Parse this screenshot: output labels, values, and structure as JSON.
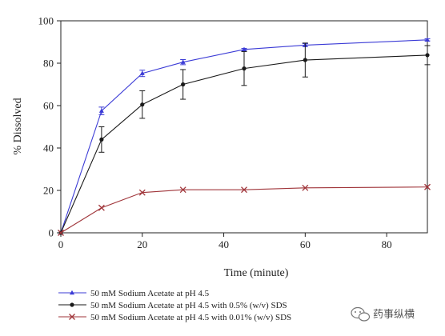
{
  "chart_data": {
    "type": "line",
    "xlabel": "Time (minute)",
    "ylabel": "% Dissolved",
    "xlim": [
      0,
      90
    ],
    "ylim": [
      0,
      100
    ],
    "xticks": [
      0,
      20,
      40,
      60,
      80
    ],
    "yticks": [
      0,
      20,
      40,
      60,
      80,
      100
    ],
    "grid": false,
    "legend_position": "bottom",
    "series": [
      {
        "name": "50 mM Sodium Acetate at pH 4.5",
        "color": "#3b3bd6",
        "marker": "triangle",
        "x": [
          0,
          10,
          20,
          30,
          45,
          60,
          90
        ],
        "y": [
          0,
          57.5,
          75.2,
          80.5,
          86.5,
          88.5,
          91.0
        ],
        "err": [
          0,
          1.8,
          1.5,
          1.2,
          0.5,
          0.7,
          0.5
        ]
      },
      {
        "name": "50 mM Sodium Acetate at pH 4.5 with 0.5% (w/v) SDS",
        "color": "#1a1a1a",
        "marker": "circle",
        "x": [
          0,
          10,
          20,
          30,
          45,
          60,
          90
        ],
        "y": [
          0,
          44.0,
          60.5,
          70.0,
          77.5,
          81.5,
          83.8
        ],
        "err": [
          0,
          6.0,
          6.5,
          7.0,
          8.0,
          8.0,
          4.5
        ]
      },
      {
        "name": "50 mM Sodium Acetate at pH 4.5 with 0.01% (w/v) SDS",
        "color": "#a0353a",
        "marker": "x",
        "x": [
          0,
          10,
          20,
          30,
          45,
          60,
          90
        ],
        "y": [
          0,
          11.8,
          19.0,
          20.3,
          20.3,
          21.2,
          21.6
        ],
        "err": [
          0,
          0,
          0,
          0,
          0,
          0,
          0
        ]
      }
    ]
  },
  "watermark": {
    "text": "药事纵横",
    "icon": "wechat-icon"
  }
}
